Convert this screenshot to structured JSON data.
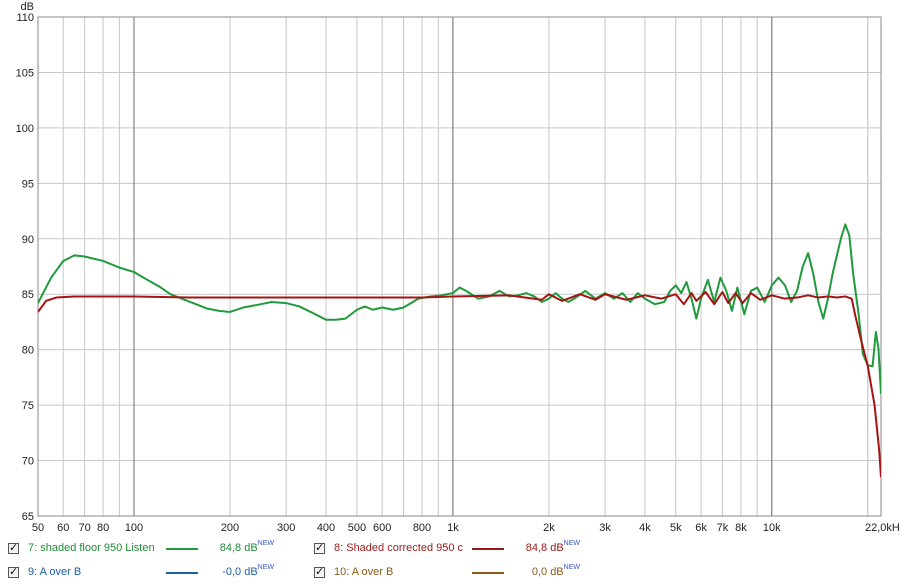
{
  "chart_data": {
    "type": "line",
    "ylabel": "dB",
    "xscale": "log",
    "xlim": [
      50,
      22000
    ],
    "ylim": [
      65,
      110
    ],
    "grid": true,
    "y_ticks": [
      65,
      70,
      75,
      80,
      85,
      90,
      95,
      100,
      105,
      110
    ],
    "x_ticks": [
      {
        "value": 50,
        "label": "50"
      },
      {
        "value": 60,
        "label": "60"
      },
      {
        "value": 70,
        "label": "70"
      },
      {
        "value": 80,
        "label": "80"
      },
      {
        "value": 100,
        "label": "100"
      },
      {
        "value": 200,
        "label": "200"
      },
      {
        "value": 300,
        "label": "300"
      },
      {
        "value": 400,
        "label": "400"
      },
      {
        "value": 500,
        "label": "500"
      },
      {
        "value": 600,
        "label": "600"
      },
      {
        "value": 800,
        "label": "800"
      },
      {
        "value": 1000,
        "label": "1k"
      },
      {
        "value": 2000,
        "label": "2k"
      },
      {
        "value": 3000,
        "label": "3k"
      },
      {
        "value": 4000,
        "label": "4k"
      },
      {
        "value": 5000,
        "label": "5k"
      },
      {
        "value": 6000,
        "label": "6k"
      },
      {
        "value": 7000,
        "label": "7k"
      },
      {
        "value": 8000,
        "label": "8k"
      },
      {
        "value": 10000,
        "label": "10k"
      },
      {
        "value": 22000,
        "label": "22,0kHz"
      }
    ],
    "series": [
      {
        "name": "7: shaded floor 950 Listen",
        "color": "#1f9a3c",
        "points": [
          [
            50,
            84.2
          ],
          [
            55,
            86.5
          ],
          [
            60,
            88
          ],
          [
            65,
            88.5
          ],
          [
            70,
            88.4
          ],
          [
            80,
            88
          ],
          [
            90,
            87.4
          ],
          [
            100,
            87
          ],
          [
            110,
            86.3
          ],
          [
            120,
            85.7
          ],
          [
            130,
            85
          ],
          [
            150,
            84.3
          ],
          [
            170,
            83.7
          ],
          [
            185,
            83.5
          ],
          [
            200,
            83.4
          ],
          [
            220,
            83.8
          ],
          [
            250,
            84.1
          ],
          [
            270,
            84.3
          ],
          [
            300,
            84.2
          ],
          [
            330,
            83.9
          ],
          [
            370,
            83.2
          ],
          [
            400,
            82.7
          ],
          [
            430,
            82.7
          ],
          [
            460,
            82.8
          ],
          [
            500,
            83.6
          ],
          [
            530,
            83.9
          ],
          [
            560,
            83.6
          ],
          [
            600,
            83.8
          ],
          [
            650,
            83.6
          ],
          [
            700,
            83.8
          ],
          [
            780,
            84.6
          ],
          [
            850,
            84.8
          ],
          [
            920,
            84.9
          ],
          [
            1000,
            85.1
          ],
          [
            1050,
            85.6
          ],
          [
            1100,
            85.3
          ],
          [
            1200,
            84.6
          ],
          [
            1300,
            84.8
          ],
          [
            1400,
            85.3
          ],
          [
            1500,
            84.8
          ],
          [
            1600,
            84.9
          ],
          [
            1700,
            85.1
          ],
          [
            1800,
            84.8
          ],
          [
            1900,
            84.3
          ],
          [
            2000,
            84.6
          ],
          [
            2100,
            85.1
          ],
          [
            2200,
            84.6
          ],
          [
            2300,
            84.3
          ],
          [
            2400,
            84.6
          ],
          [
            2600,
            85.3
          ],
          [
            2800,
            84.6
          ],
          [
            3000,
            85.1
          ],
          [
            3200,
            84.6
          ],
          [
            3400,
            85.1
          ],
          [
            3600,
            84.3
          ],
          [
            3800,
            85.1
          ],
          [
            4000,
            84.6
          ],
          [
            4300,
            84.1
          ],
          [
            4600,
            84.3
          ],
          [
            4800,
            85.3
          ],
          [
            5000,
            85.8
          ],
          [
            5200,
            85.1
          ],
          [
            5400,
            86.1
          ],
          [
            5600,
            84.6
          ],
          [
            5800,
            82.8
          ],
          [
            6000,
            84.6
          ],
          [
            6300,
            86.3
          ],
          [
            6600,
            84.3
          ],
          [
            6900,
            86.5
          ],
          [
            7200,
            85.3
          ],
          [
            7500,
            83.5
          ],
          [
            7800,
            85.6
          ],
          [
            8200,
            83.2
          ],
          [
            8600,
            85.3
          ],
          [
            9000,
            85.6
          ],
          [
            9500,
            84.3
          ],
          [
            10000,
            85.8
          ],
          [
            10500,
            86.5
          ],
          [
            11000,
            85.8
          ],
          [
            11500,
            84.3
          ],
          [
            12000,
            85.3
          ],
          [
            12500,
            87.5
          ],
          [
            13000,
            88.7
          ],
          [
            13500,
            86.8
          ],
          [
            14000,
            84.3
          ],
          [
            14500,
            82.8
          ],
          [
            15000,
            84.6
          ],
          [
            15500,
            86.8
          ],
          [
            16000,
            88.5
          ],
          [
            16500,
            90.1
          ],
          [
            17000,
            91.3
          ],
          [
            17500,
            90.3
          ],
          [
            18000,
            86.8
          ],
          [
            18700,
            83.3
          ],
          [
            19300,
            79.6
          ],
          [
            20000,
            78.6
          ],
          [
            20700,
            78.5
          ],
          [
            21200,
            81.6
          ],
          [
            21600,
            80.1
          ],
          [
            22000,
            76
          ]
        ]
      },
      {
        "name": "8: Shaded corrected 950 c",
        "color": "#a51414",
        "points": [
          [
            50,
            83.4
          ],
          [
            53,
            84.4
          ],
          [
            57,
            84.7
          ],
          [
            65,
            84.8
          ],
          [
            80,
            84.8
          ],
          [
            100,
            84.8
          ],
          [
            150,
            84.7
          ],
          [
            200,
            84.7
          ],
          [
            300,
            84.7
          ],
          [
            500,
            84.7
          ],
          [
            800,
            84.7
          ],
          [
            1000,
            84.8
          ],
          [
            1500,
            84.9
          ],
          [
            1900,
            84.5
          ],
          [
            2000,
            85
          ],
          [
            2200,
            84.4
          ],
          [
            2500,
            85
          ],
          [
            2800,
            84.5
          ],
          [
            3000,
            85
          ],
          [
            3500,
            84.5
          ],
          [
            4000,
            84.9
          ],
          [
            4500,
            84.6
          ],
          [
            5000,
            85
          ],
          [
            5300,
            84.1
          ],
          [
            5600,
            85.1
          ],
          [
            5800,
            84.4
          ],
          [
            6200,
            85.2
          ],
          [
            6600,
            84.1
          ],
          [
            7000,
            85.2
          ],
          [
            7300,
            84.2
          ],
          [
            7700,
            85.1
          ],
          [
            8100,
            84.2
          ],
          [
            8600,
            85.1
          ],
          [
            9200,
            84.5
          ],
          [
            10000,
            84.9
          ],
          [
            11000,
            84.6
          ],
          [
            12000,
            84.7
          ],
          [
            13000,
            84.9
          ],
          [
            14000,
            84.7
          ],
          [
            15000,
            84.8
          ],
          [
            16000,
            84.7
          ],
          [
            17000,
            84.8
          ],
          [
            17800,
            84.6
          ],
          [
            18300,
            83
          ],
          [
            19000,
            81
          ],
          [
            20000,
            78.5
          ],
          [
            21000,
            75
          ],
          [
            21700,
            71
          ],
          [
            22000,
            68.5
          ]
        ]
      },
      {
        "name": "9: A over B",
        "color": "#1a5fa8",
        "points": []
      },
      {
        "name": "10: A over B",
        "color": "#8a5a1a",
        "points": []
      }
    ]
  },
  "legend": [
    {
      "name": "7: shaded floor 950 Listen",
      "value": "84,8 dB",
      "tag": "NEW",
      "color": "#1f9a3c",
      "text_color": "#1f8c37"
    },
    {
      "name": "8: Shaded corrected 950 c",
      "value": "84,8 dB",
      "tag": "NEW",
      "color": "#a51414",
      "text_color": "#9e1a1a"
    },
    {
      "name": "9: A over B",
      "value": "-0,0 dB",
      "tag": "NEW",
      "color": "#1a5fa8",
      "text_color": "#1d5fa3"
    },
    {
      "name": "10: A over B",
      "value": "0,0 dB",
      "tag": "NEW",
      "color": "#8a5a1a",
      "text_color": "#8a5a1a"
    }
  ]
}
